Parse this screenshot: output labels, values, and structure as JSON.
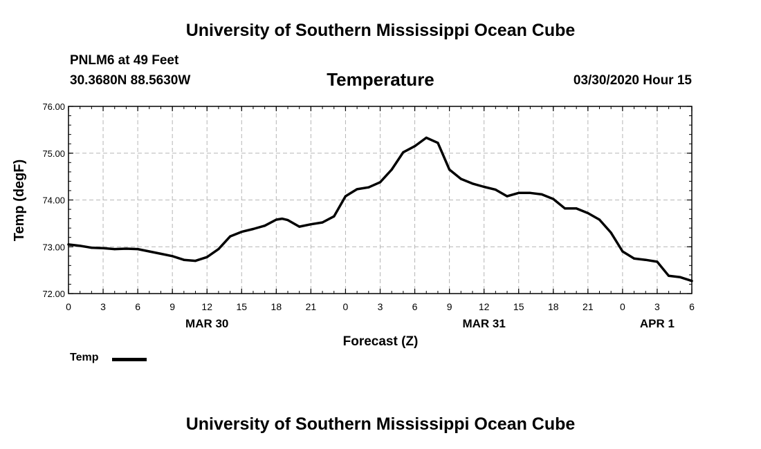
{
  "header": {
    "title": "University of Southern Mississippi Ocean Cube",
    "station": "PNLM6 at 49 Feet",
    "coords": "30.3680N 88.5630W",
    "date": "03/30/2020 Hour 15"
  },
  "footer": {
    "title": "University of Southern Mississippi Ocean Cube"
  },
  "legend": {
    "label": "Temp",
    "color": "#000000"
  },
  "chart_data": {
    "type": "line",
    "title": "Temperature",
    "xlabel": "Forecast (Z)",
    "ylabel": "Temp (degF)",
    "xlim": [
      0,
      54
    ],
    "ylim": [
      72.0,
      76.0
    ],
    "yticks": [
      "72.00",
      "73.00",
      "74.00",
      "75.00",
      "76.00"
    ],
    "xtick_labels": [
      "0",
      "3",
      "6",
      "9",
      "12",
      "15",
      "18",
      "21",
      "0",
      "3",
      "6",
      "9",
      "12",
      "15",
      "18",
      "21",
      "0",
      "3",
      "6"
    ],
    "date_labels": [
      {
        "label": "MAR 30",
        "hour": 12
      },
      {
        "label": "MAR 31",
        "hour": 36
      },
      {
        "label": "APR 1",
        "hour": 51
      }
    ],
    "grid": true,
    "series": [
      {
        "name": "Temp",
        "color": "#000000",
        "x": [
          0,
          1,
          2,
          3,
          4,
          5,
          6,
          7,
          8,
          9,
          10,
          11,
          12,
          13,
          14,
          15,
          16,
          17,
          18,
          18.5,
          19,
          20,
          21,
          22,
          23,
          24,
          25,
          26,
          27,
          28,
          29,
          30,
          31,
          32,
          33,
          34,
          35,
          36,
          37,
          38,
          39,
          40,
          41,
          42,
          43,
          44,
          45,
          46,
          47,
          48,
          49,
          50,
          51,
          52,
          53,
          54
        ],
        "values": [
          73.05,
          73.02,
          72.98,
          72.97,
          72.95,
          72.96,
          72.95,
          72.9,
          72.85,
          72.8,
          72.72,
          72.7,
          72.78,
          72.95,
          73.22,
          73.32,
          73.38,
          73.45,
          73.58,
          73.6,
          73.57,
          73.43,
          73.48,
          73.52,
          73.65,
          74.08,
          74.23,
          74.27,
          74.38,
          74.65,
          75.02,
          75.15,
          75.33,
          75.22,
          74.65,
          74.45,
          74.35,
          74.28,
          74.22,
          74.08,
          74.15,
          74.15,
          74.12,
          74.02,
          73.82,
          73.82,
          73.72,
          73.58,
          73.3,
          72.9,
          72.75,
          72.72,
          72.68,
          72.38,
          72.35,
          72.27
        ]
      }
    ]
  }
}
